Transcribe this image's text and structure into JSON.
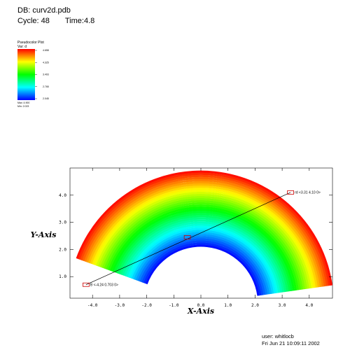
{
  "header": {
    "db": "DB: curv2d.pdb",
    "cycle": "Cycle: 48",
    "time": "Time:4.8"
  },
  "legend": {
    "title": "Pseudocolor Plot",
    "var": "Var:  d",
    "tick_labels": [
      "4.658",
      "4.325",
      "3.403",
      "2.765",
      "2.045"
    ],
    "max_label": "Max:  4.900",
    "min_label": "Min:  2.023"
  },
  "footer": {
    "user": "user: whitlocb",
    "date": "Fri Jun 21 10:09:11 2002"
  },
  "chart_data": {
    "type": "heatmap",
    "title": "",
    "xlabel": "X-Axis",
    "ylabel": "Y-Axis",
    "xlim": [
      -4.9,
      4.9
    ],
    "ylim": [
      0.45,
      5.0
    ],
    "x_ticks": [
      "-4.0",
      "-3.0",
      "-2.0",
      "-1.0",
      "0.0",
      "1.0",
      "2.0",
      "3.0",
      "4.0"
    ],
    "y_ticks": [
      "1.0",
      "2.0",
      "3.0",
      "4.0"
    ],
    "x_tick_values": [
      -4,
      -3,
      -2,
      -1,
      0,
      1,
      2,
      3,
      4
    ],
    "y_tick_values": [
      1,
      2,
      3,
      4
    ],
    "field": {
      "variable": "d",
      "min": 2.023,
      "max": 4.9,
      "inner_radius": 2.1,
      "outer_radius": 4.9,
      "angle_start_deg": 8,
      "angle_end_deg": 160,
      "colormap": "hot-to-cold rainbow; blue at inner radius, red at outer radius"
    },
    "lineout": {
      "start": [
        -4.24,
        0.703
      ],
      "end": [
        3.31,
        4.1
      ],
      "mid_marker": [
        -0.5,
        2.45
      ],
      "start_label": "B  <-4.24  0.703  0>",
      "end_label": "rd  <3.31  4.10  0>"
    },
    "colors": {
      "low": "#0000ff",
      "high": "#ff0000",
      "lineout": "#000000",
      "marker": "#cc0000"
    }
  }
}
